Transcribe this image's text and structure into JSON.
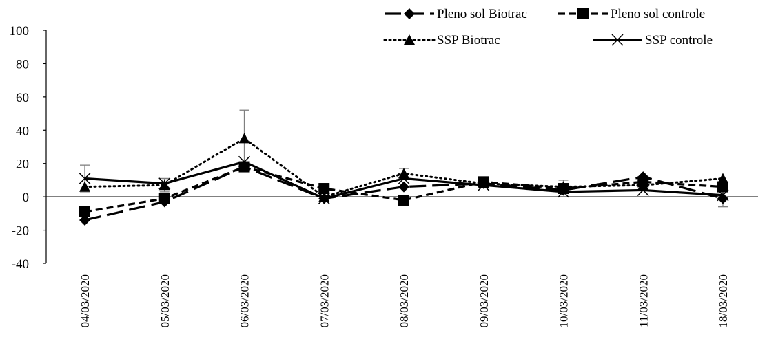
{
  "chart_data": {
    "type": "line",
    "title": "",
    "xlabel": "",
    "ylabel": "",
    "ylim": [
      -40,
      100
    ],
    "yticks": [
      -40,
      -20,
      0,
      20,
      40,
      60,
      80,
      100
    ],
    "grid": false,
    "legend_position": "top-right",
    "categories": [
      "04/03/2020",
      "05/03/2020",
      "06/03/2020",
      "07/03/2020",
      "08/03/2020",
      "09/03/2020",
      "10/03/2020",
      "11/03/2020",
      "18/03/2020"
    ],
    "series": [
      {
        "name": "Pleno sol Biotrac",
        "marker": "diamond",
        "line_style": "long-dash",
        "values": [
          -14,
          -3,
          18,
          -1,
          6,
          8,
          4,
          12,
          -1
        ],
        "error": [
          0,
          0,
          0,
          0,
          0,
          0,
          0,
          0,
          5
        ]
      },
      {
        "name": "Pleno sol controle",
        "marker": "square",
        "line_style": "short-dash",
        "values": [
          -9,
          -1,
          18,
          5,
          -2,
          9,
          5,
          9,
          6
        ],
        "error": [
          0,
          0,
          0,
          0,
          0,
          0,
          0,
          0,
          0
        ]
      },
      {
        "name": "SSP Biotrac",
        "marker": "triangle",
        "line_style": "dotted",
        "values": [
          6,
          7,
          35,
          0,
          14,
          8,
          6,
          7,
          11
        ],
        "error": [
          0,
          4,
          17,
          0,
          3,
          2,
          4,
          2,
          0
        ]
      },
      {
        "name": "SSP controle",
        "marker": "x",
        "line_style": "solid",
        "values": [
          11,
          8,
          21,
          -1,
          11,
          7,
          3,
          4,
          1
        ],
        "error": [
          8,
          3,
          0,
          0,
          0,
          0,
          0,
          0,
          0
        ]
      }
    ],
    "colors": {
      "line": "#000000",
      "axis": "#000000",
      "error_bar": "#7f7f7f"
    }
  }
}
